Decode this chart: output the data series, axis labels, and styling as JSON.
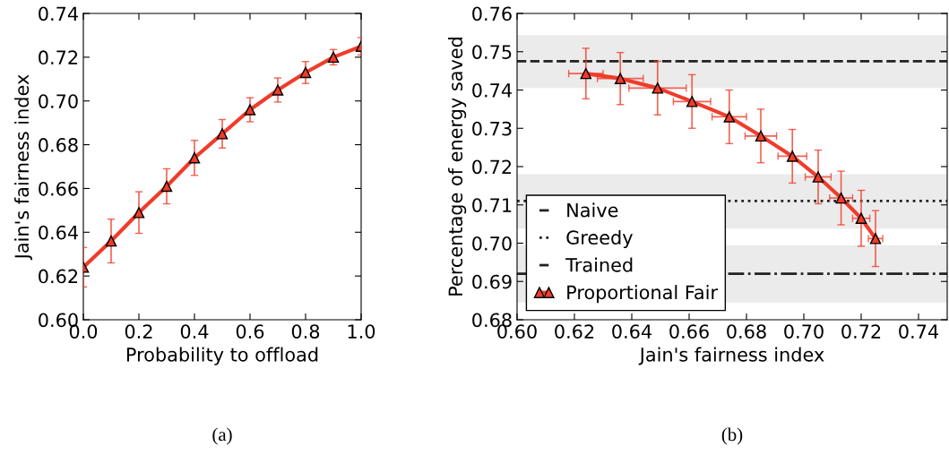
{
  "chart_data": [
    {
      "type": "line",
      "xlabel": "Probability to offload",
      "ylabel": "Jain's fairness index",
      "annotations": [
        "(a)"
      ],
      "x": [
        0.0,
        0.1,
        0.2,
        0.3,
        0.4,
        0.5,
        0.6,
        0.7,
        0.8,
        0.9,
        1.0
      ],
      "series": [
        {
          "color": "#f03c2a",
          "marker": "triangle",
          "line_style": "solid",
          "values": [
            0.624,
            0.636,
            0.649,
            0.661,
            0.674,
            0.685,
            0.696,
            0.705,
            0.713,
            0.72,
            0.725
          ],
          "errors": [
            0.009,
            0.01,
            0.0095,
            0.008,
            0.008,
            0.0065,
            0.0055,
            0.0055,
            0.005,
            0.0035,
            0.004
          ]
        }
      ],
      "xlim": [
        0.0,
        1.0
      ],
      "xticks": [
        {
          "value": 0.0,
          "label": "0.0"
        },
        0.2,
        0.4,
        0.6,
        0.8,
        {
          "value": 1.0,
          "label": "1.0"
        }
      ],
      "ylim": [
        0.6,
        0.74
      ],
      "yticks": [
        {
          "value": 0.6,
          "label": "0.60"
        },
        0.62,
        0.64,
        0.66,
        0.68,
        {
          "value": 0.7,
          "label": "0.70"
        },
        0.72,
        0.74
      ],
      "grid": false,
      "legend": false
    },
    {
      "type": "line",
      "xlabel": "Jain's fairness index",
      "ylabel": "Percentage of energy saved",
      "annotations": [
        "(b)"
      ],
      "x": [
        0.624,
        0.636,
        0.649,
        0.661,
        0.674,
        0.685,
        0.696,
        0.705,
        0.713,
        0.72,
        0.725
      ],
      "series": [
        {
          "name": "Proportional Fair",
          "color": "#f03c2a",
          "marker": "triangle",
          "line_style": "solid",
          "values": [
            0.7443,
            0.743,
            0.7405,
            0.737,
            0.733,
            0.728,
            0.7227,
            0.7173,
            0.7118,
            0.7065,
            0.7012
          ],
          "errors": [
            0.0066,
            0.0068,
            0.007,
            0.007,
            0.007,
            0.007,
            0.007,
            0.007,
            0.007,
            0.0073,
            0.0073
          ],
          "xerrors": [
            0.006,
            0.008,
            0.01,
            0.0065,
            0.006,
            0.0055,
            0.005,
            0.0045,
            0.004,
            0.003,
            0.0025
          ]
        }
      ],
      "ref_lines": [
        {
          "axis": "y",
          "value": 0.692,
          "label": "Naive",
          "color": "#222222",
          "line_style": "dashdot"
        },
        {
          "axis": "y",
          "value": 0.711,
          "label": "Greedy",
          "color": "#222222",
          "line_style": "dotted"
        },
        {
          "axis": "y",
          "value": 0.7475,
          "label": "Trained",
          "color": "#222222",
          "line_style": "dashed"
        }
      ],
      "bands": [
        {
          "axis": "y",
          "from": 0.6845,
          "to": 0.6995,
          "color": "#ebebeb"
        },
        {
          "axis": "y",
          "from": 0.7038,
          "to": 0.718,
          "color": "#ebebeb"
        },
        {
          "axis": "y",
          "from": 0.7405,
          "to": 0.7543,
          "color": "#ebebeb"
        }
      ],
      "xlim": [
        0.6,
        0.75
      ],
      "xticks": [
        {
          "value": 0.6,
          "label": "0.60"
        },
        0.62,
        0.64,
        0.66,
        0.68,
        {
          "value": 0.7,
          "label": "0.70"
        },
        0.72,
        0.74
      ],
      "ylim": [
        0.68,
        0.76
      ],
      "yticks": [
        {
          "value": 0.68,
          "label": "0.68"
        },
        0.69,
        {
          "value": 0.7,
          "label": "0.70"
        },
        0.71,
        0.72,
        0.73,
        0.74,
        0.75,
        0.76
      ],
      "grid": false,
      "legend": "bottom left"
    }
  ]
}
